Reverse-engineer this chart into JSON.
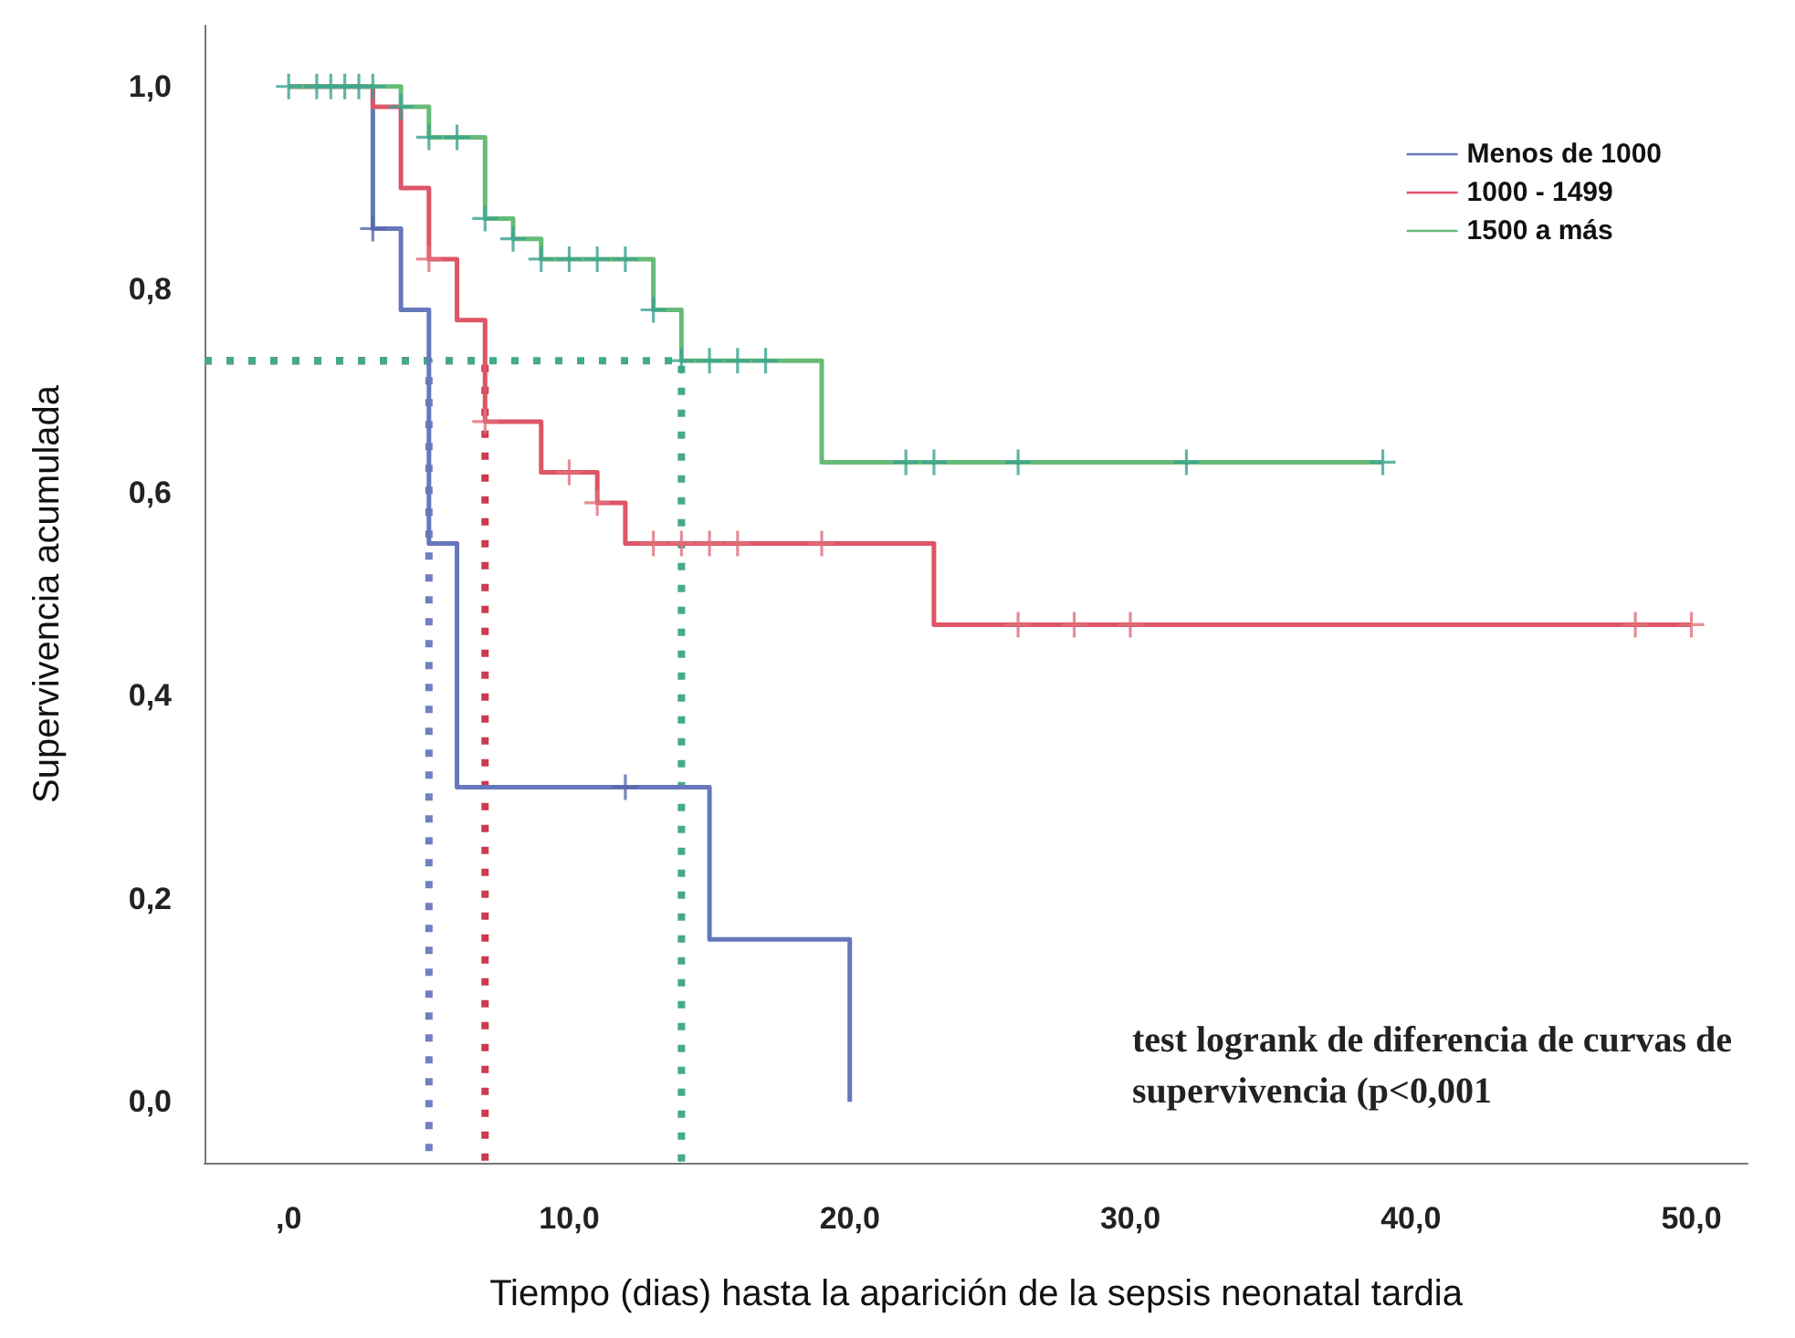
{
  "chart_data": {
    "type": "step",
    "xlabel": "Tiempo (dias) hasta la aparición de la sepsis neonatal tardia",
    "ylabel": "Supervivencia acumulada",
    "xlim": [
      -3,
      52
    ],
    "xticks": [
      {
        "value": 0,
        "label": ",0"
      },
      {
        "value": 10,
        "label": "10,0"
      },
      {
        "value": 20,
        "label": "20,0"
      },
      {
        "value": 30,
        "label": "30,0"
      },
      {
        "value": 40,
        "label": "40,0"
      },
      {
        "value": 50,
        "label": "50,0"
      }
    ],
    "ylim": [
      -0.06,
      1.06
    ],
    "yticks": [
      {
        "value": 0,
        "label": "0,0"
      },
      {
        "value": 0.2,
        "label": "0,2"
      },
      {
        "value": 0.4,
        "label": "0,4"
      },
      {
        "value": 0.6,
        "label": "0,6"
      },
      {
        "value": 0.8,
        "label": "0,8"
      },
      {
        "value": 1,
        "label": "1,0"
      }
    ],
    "grid": false,
    "legend": "top right",
    "annotations": [
      "test logrank de diferencia de curvas de supervivencia (p<0,001"
    ],
    "series": [
      {
        "type": "line",
        "line_style": "dotted",
        "marker": "none",
        "color": "#6f7fbf",
        "x": [
          -3,
          5,
          5
        ],
        "values": [
          0.73,
          0.73,
          -0.06
        ]
      },
      {
        "type": "line",
        "line_style": "dotted",
        "marker": "none",
        "color": "#cc3a4e",
        "x": [
          -3,
          7,
          7
        ],
        "values": [
          0.73,
          0.73,
          -0.06
        ]
      },
      {
        "type": "line",
        "line_style": "dotted",
        "marker": "none",
        "color": "#44aa88",
        "x": [
          -3,
          14,
          14
        ],
        "values": [
          0.73,
          0.73,
          -0.06
        ]
      },
      {
        "name": "Menos de 1000",
        "color": "#6677bb",
        "x": [
          0,
          3,
          4,
          5,
          6,
          15,
          20
        ],
        "values": [
          1,
          0.86,
          0.78,
          0.55,
          0.31,
          0.16,
          0
        ]
      },
      {
        "name": "1000 - 1499",
        "color": "#dd5566",
        "x": [
          0,
          3,
          4,
          5,
          6,
          7,
          9,
          11,
          12,
          23,
          50
        ],
        "values": [
          1,
          0.98,
          0.9,
          0.83,
          0.77,
          0.67,
          0.62,
          0.59,
          0.55,
          0.47,
          0.47
        ]
      },
      {
        "name": "1500 a más",
        "color": "#66bb77",
        "x": [
          0,
          4,
          5,
          7,
          8,
          9,
          13,
          14,
          19,
          39
        ],
        "values": [
          1,
          0.98,
          0.95,
          0.87,
          0.85,
          0.83,
          0.78,
          0.73,
          0.63,
          0.63
        ]
      },
      {
        "type": "scatter",
        "marker": "cross",
        "color": "#5566aa",
        "x": [
          3,
          12
        ],
        "values": [
          0.86,
          0.31
        ]
      },
      {
        "type": "scatter",
        "marker": "cross",
        "color": "#e0707a",
        "x": [
          5,
          7,
          10,
          11,
          13,
          14,
          15,
          16,
          19,
          26,
          28,
          30,
          48,
          50
        ],
        "values": [
          0.83,
          0.67,
          0.62,
          0.59,
          0.55,
          0.55,
          0.55,
          0.55,
          0.55,
          0.47,
          0.47,
          0.47,
          0.47,
          0.47
        ]
      },
      {
        "type": "scatter",
        "marker": "cross",
        "color": "#3aa394",
        "x": [
          0,
          1,
          1.5,
          2,
          2.5,
          3,
          4,
          5,
          6,
          7,
          8,
          9,
          10,
          11,
          12,
          13,
          14,
          15,
          16,
          17,
          22,
          23,
          26,
          32,
          39
        ],
        "values": [
          1,
          1,
          1,
          1,
          1,
          1,
          0.98,
          0.95,
          0.95,
          0.87,
          0.85,
          0.83,
          0.83,
          0.83,
          0.83,
          0.78,
          0.73,
          0.73,
          0.73,
          0.73,
          0.63,
          0.63,
          0.63,
          0.63,
          0.63
        ]
      }
    ]
  }
}
